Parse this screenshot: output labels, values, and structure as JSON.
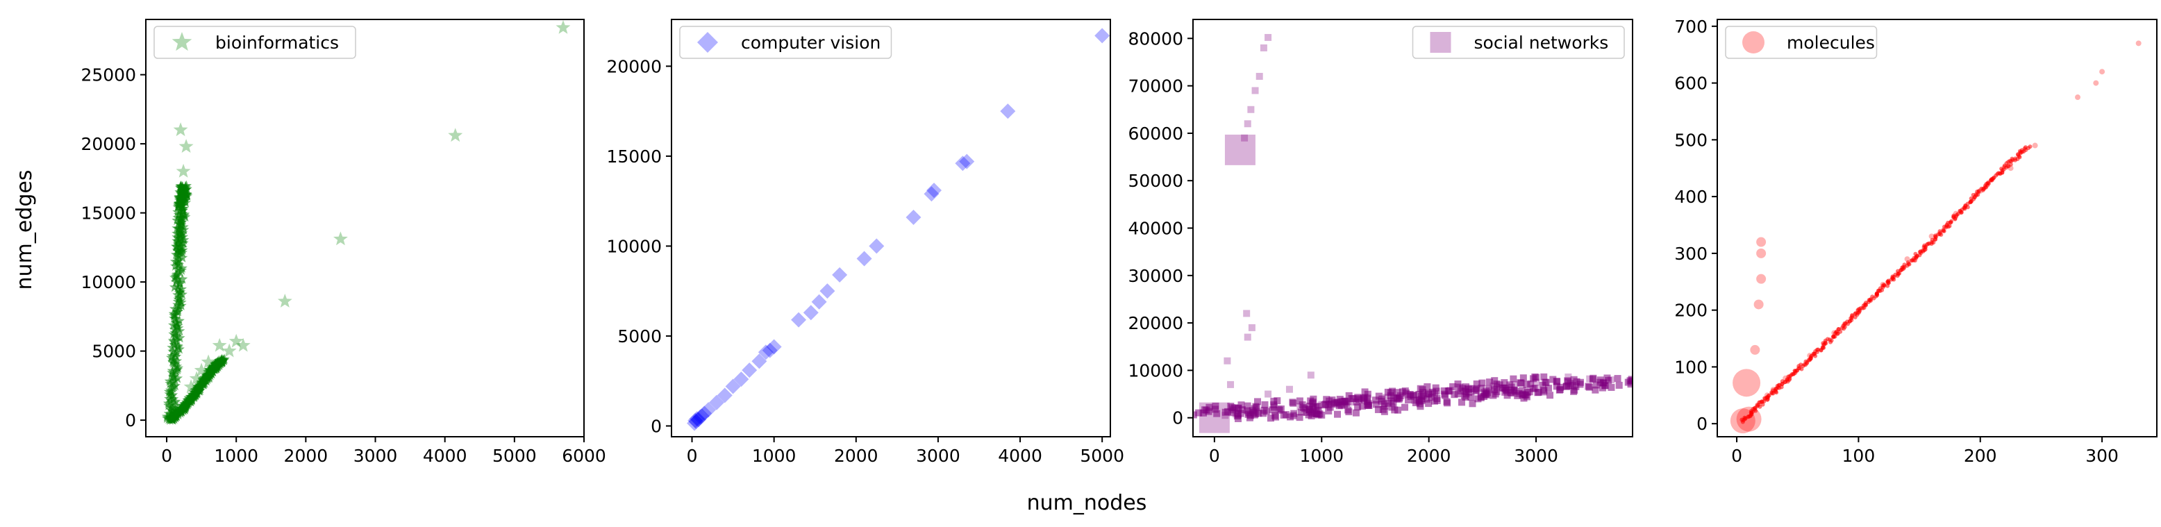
{
  "figure": {
    "xlabel": "num_nodes",
    "ylabel": "num_edges"
  },
  "chart_data": [
    {
      "type": "scatter",
      "legend": "bioinformatics",
      "legend_loc": "upper-left",
      "marker": "star",
      "color": "#008000",
      "xlim": [
        -300,
        6000
      ],
      "ylim": [
        -1200,
        29000
      ],
      "xticks": [
        0,
        1000,
        2000,
        3000,
        4000,
        5000,
        6000
      ],
      "yticks": [
        0,
        5000,
        10000,
        15000,
        20000,
        25000
      ],
      "points": [
        [
          5700,
          28400
        ],
        [
          4150,
          20600
        ],
        [
          2500,
          13100
        ],
        [
          1700,
          8600
        ],
        [
          1000,
          5700
        ],
        [
          1100,
          5400
        ],
        [
          200,
          21000
        ],
        [
          280,
          19800
        ],
        [
          240,
          18000
        ],
        [
          760,
          5400
        ],
        [
          600,
          4200
        ],
        [
          500,
          3600
        ],
        [
          900,
          5000
        ],
        [
          350,
          2400
        ],
        [
          430,
          3000
        ],
        [
          60,
          200
        ],
        [
          120,
          600
        ],
        [
          90,
          1200
        ]
      ],
      "bands": [
        {
          "points": [
            [
              50,
              0
            ],
            [
              150,
              6000
            ],
            [
              180,
              12000
            ],
            [
              220,
              15500
            ],
            [
              260,
              17000
            ]
          ],
          "spread": 60
        },
        {
          "points": [
            [
              50,
              0
            ],
            [
              250,
              900
            ],
            [
              450,
              2200
            ],
            [
              650,
              3600
            ],
            [
              800,
              4400
            ]
          ],
          "spread": 40
        }
      ]
    },
    {
      "type": "scatter",
      "legend": "computer vision",
      "legend_loc": "upper-left",
      "marker": "diamond",
      "color": "#0000ff",
      "xlim": [
        -250,
        5100
      ],
      "ylim": [
        -600,
        22600
      ],
      "xticks": [
        0,
        1000,
        2000,
        3000,
        4000,
        5000
      ],
      "yticks": [
        0,
        5000,
        10000,
        15000,
        20000
      ],
      "points": [
        [
          5000,
          21700
        ],
        [
          3850,
          17500
        ],
        [
          3350,
          14700
        ],
        [
          3300,
          14600
        ],
        [
          2950,
          13100
        ],
        [
          2920,
          12900
        ],
        [
          2700,
          11600
        ],
        [
          2250,
          10000
        ],
        [
          2100,
          9300
        ],
        [
          1800,
          8400
        ],
        [
          1650,
          7500
        ],
        [
          1550,
          6900
        ],
        [
          1450,
          6300
        ],
        [
          1300,
          5900
        ],
        [
          1000,
          4400
        ],
        [
          950,
          4200
        ],
        [
          900,
          4100
        ],
        [
          820,
          3600
        ],
        [
          700,
          3100
        ],
        [
          600,
          2600
        ],
        [
          500,
          2200
        ],
        [
          400,
          1700
        ],
        [
          300,
          1300
        ],
        [
          200,
          900
        ],
        [
          120,
          550
        ],
        [
          80,
          350
        ],
        [
          50,
          250
        ],
        [
          30,
          150
        ],
        [
          150,
          700
        ],
        [
          100,
          500
        ],
        [
          60,
          400
        ],
        [
          40,
          300
        ]
      ]
    },
    {
      "type": "scatter",
      "legend": "social networks",
      "legend_loc": "upper-right",
      "marker": "square",
      "color": "#800080",
      "xlim": [
        -200,
        3900
      ],
      "ylim": [
        -4000,
        84000
      ],
      "xticks": [
        0,
        1000,
        2000,
        3000
      ],
      "yticks": [
        0,
        10000,
        20000,
        30000,
        40000,
        50000,
        60000,
        70000,
        80000
      ],
      "points": [
        [
          0,
          0
        ],
        [
          240,
          56500
        ],
        [
          500,
          80200
        ],
        [
          460,
          78000
        ],
        [
          420,
          72000
        ],
        [
          380,
          69000
        ],
        [
          340,
          65000
        ],
        [
          310,
          62000
        ],
        [
          280,
          59000
        ],
        [
          3700,
          8000
        ],
        [
          3500,
          8200
        ],
        [
          3300,
          8600
        ],
        [
          3000,
          7500
        ],
        [
          2800,
          7000
        ],
        [
          2600,
          6700
        ],
        [
          2400,
          6200
        ],
        [
          2200,
          5800
        ],
        [
          2000,
          5200
        ],
        [
          1800,
          4800
        ],
        [
          1600,
          4300
        ],
        [
          1400,
          3800
        ],
        [
          1200,
          3300
        ],
        [
          1000,
          2800
        ],
        [
          800,
          2300
        ],
        [
          600,
          1800
        ],
        [
          400,
          1300
        ],
        [
          200,
          800
        ],
        [
          100,
          500
        ],
        [
          300,
          22000
        ],
        [
          310,
          17000
        ],
        [
          350,
          19000
        ],
        [
          120,
          12000
        ],
        [
          900,
          9000
        ],
        [
          700,
          6000
        ],
        [
          500,
          5000
        ],
        [
          150,
          7000
        ]
      ],
      "bands": [
        {
          "points": [
            [
              50,
              100
            ],
            [
              600,
              1400
            ],
            [
              1200,
              2700
            ],
            [
              1800,
              4100
            ],
            [
              2400,
              5300
            ],
            [
              3000,
              6700
            ],
            [
              3700,
              8000
            ]
          ],
          "spread": 800
        }
      ]
    },
    {
      "type": "scatter",
      "legend": "molecules",
      "legend_loc": "upper-left",
      "marker": "circle",
      "color": "#ff0000",
      "xlim": [
        -16,
        345
      ],
      "ylim": [
        -23,
        712
      ],
      "xticks": [
        0,
        100,
        200,
        300
      ],
      "yticks": [
        0,
        100,
        200,
        300,
        400,
        500,
        600,
        700
      ],
      "points": [
        [
          5,
          5
        ],
        [
          10,
          8
        ],
        [
          8,
          72
        ],
        [
          18,
          210
        ],
        [
          20,
          255
        ],
        [
          20,
          300
        ],
        [
          20,
          320
        ],
        [
          15,
          130
        ],
        [
          330,
          670
        ],
        [
          300,
          620
        ],
        [
          295,
          600
        ],
        [
          280,
          575
        ],
        [
          245,
          490
        ],
        [
          225,
          450
        ],
        [
          200,
          410
        ],
        [
          180,
          370
        ],
        [
          160,
          330
        ],
        [
          140,
          290
        ],
        [
          120,
          245
        ],
        [
          100,
          200
        ],
        [
          80,
          160
        ],
        [
          60,
          120
        ],
        [
          40,
          80
        ],
        [
          30,
          60
        ],
        [
          25,
          50
        ]
      ],
      "bands": [
        {
          "points": [
            [
              5,
              5
            ],
            [
              40,
              75
            ],
            [
              80,
              155
            ],
            [
              120,
              240
            ],
            [
              160,
              320
            ],
            [
              200,
              410
            ],
            [
              240,
              490
            ]
          ],
          "spread": 2
        }
      ]
    }
  ]
}
